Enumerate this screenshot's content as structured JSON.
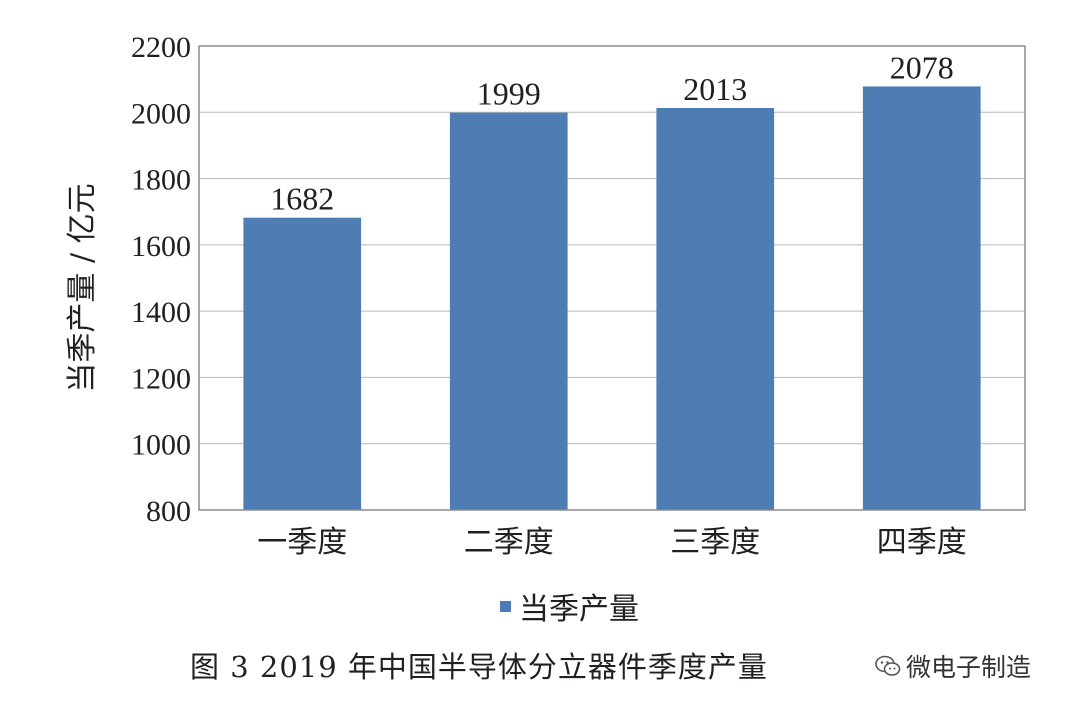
{
  "chart_data": {
    "type": "bar",
    "categories": [
      "一季度",
      "二季度",
      "三季度",
      "四季度"
    ],
    "series": [
      {
        "name": "当季产量",
        "values": [
          1682,
          1999,
          2013,
          2078
        ]
      }
    ],
    "data_labels": [
      "1682",
      "1999",
      "2013",
      "2078"
    ],
    "ylabel": "当季产量 / 亿元",
    "xlabel": "",
    "ylim": [
      800,
      2200
    ],
    "yticks": [
      800,
      1000,
      1200,
      1400,
      1600,
      1800,
      2000,
      2200
    ],
    "grid": true,
    "legend_position": "bottom",
    "bar_color": "#4e7db3"
  },
  "legend": {
    "label": "当季产量"
  },
  "caption": "图 3  2019 年中国半导体分立器件季度产量",
  "watermark": {
    "text": "微电子制造",
    "icon": "wechat-icon"
  }
}
